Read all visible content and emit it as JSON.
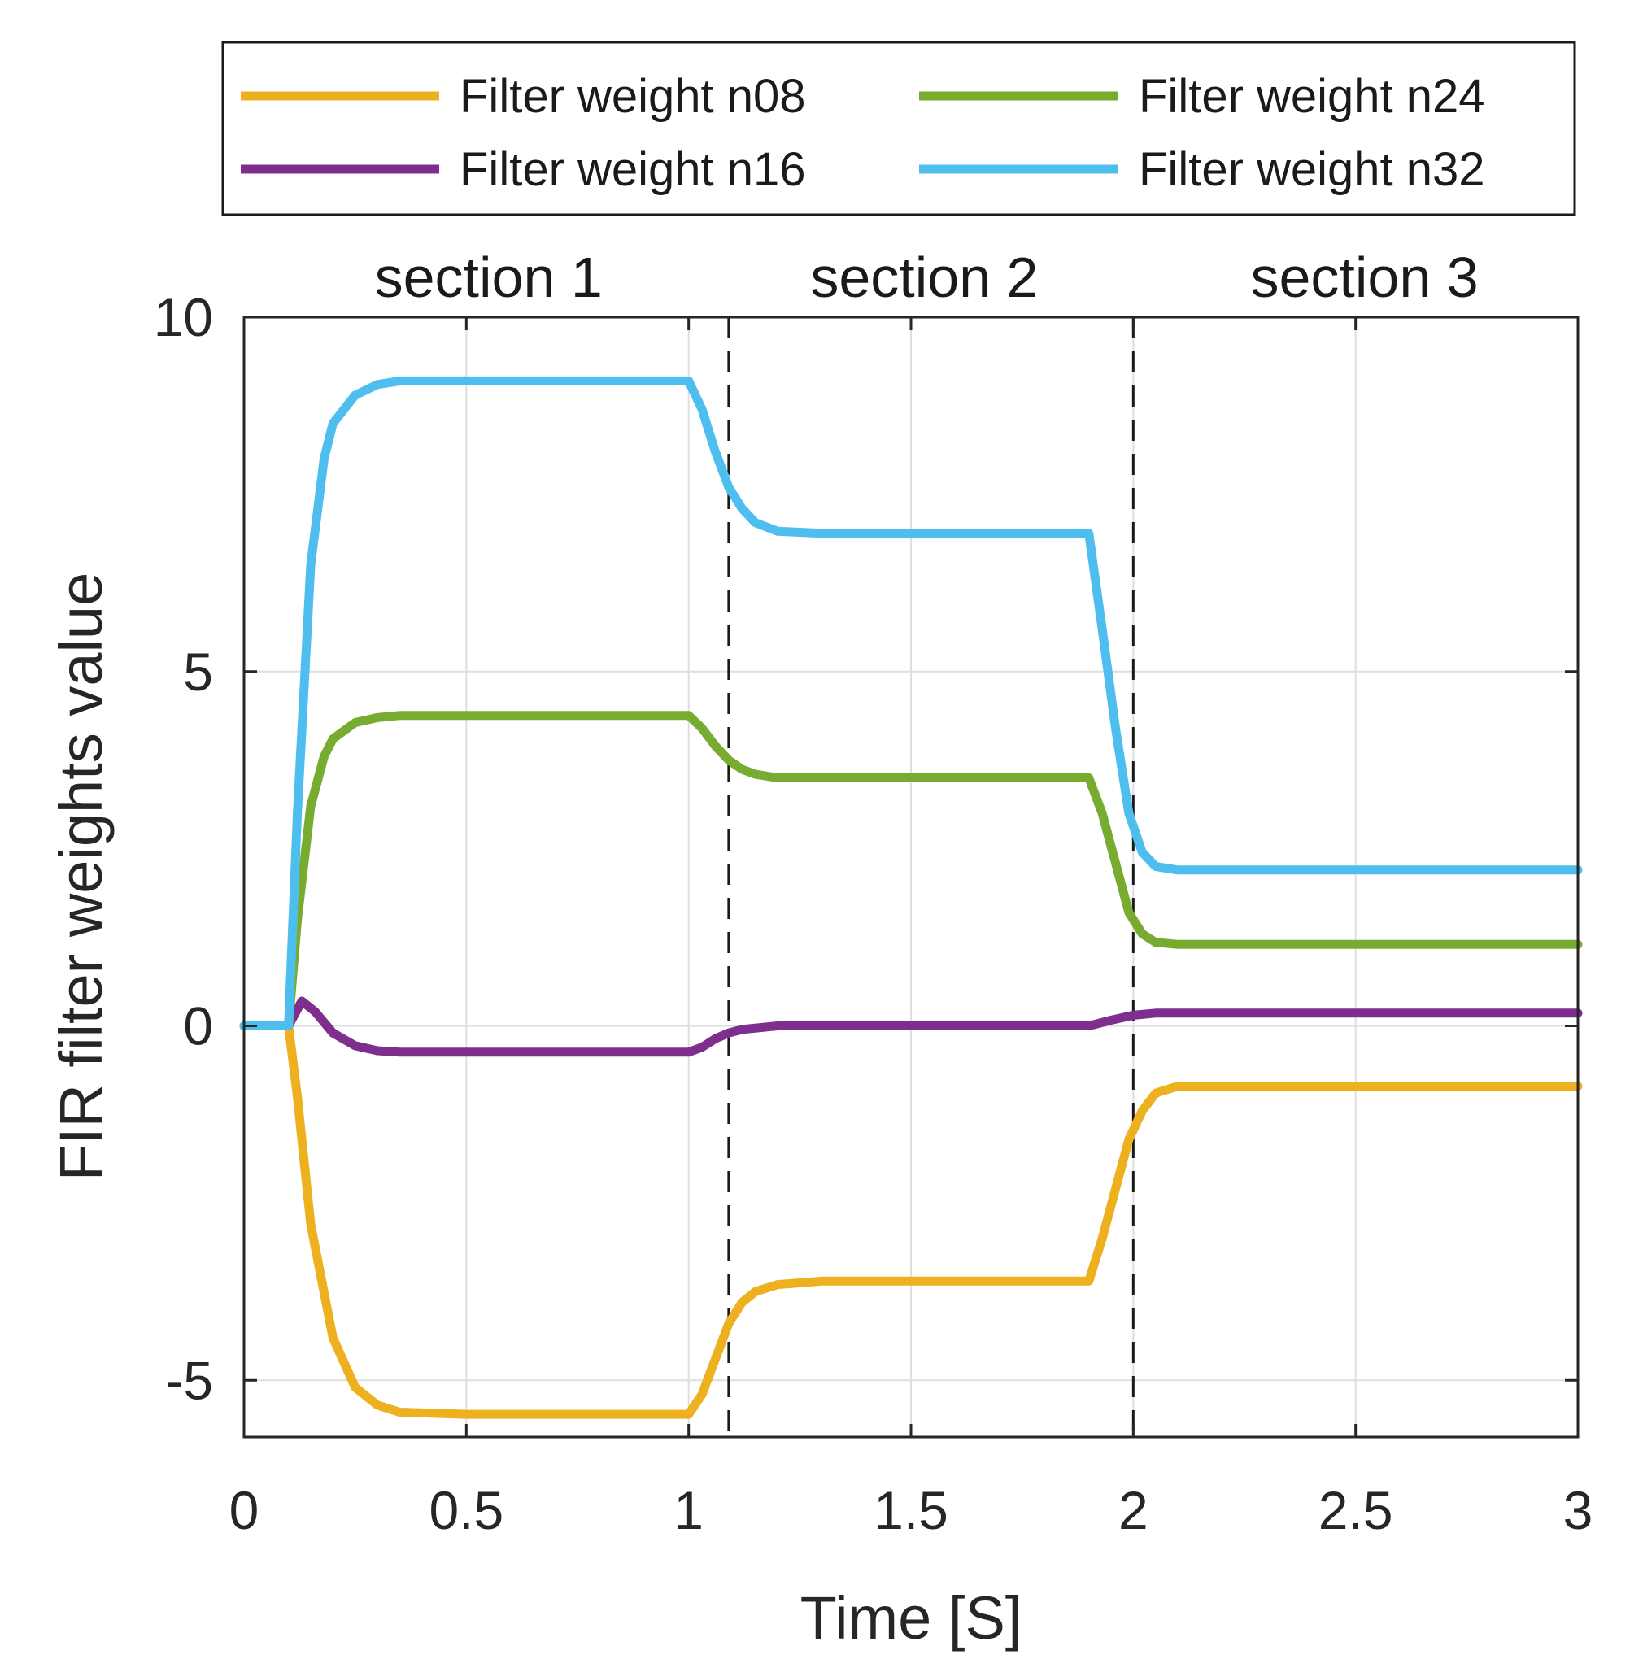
{
  "chart_data": {
    "type": "line",
    "title": "",
    "xlabel": "Time [S]",
    "ylabel": "FIR filter weights value",
    "xlim": [
      0,
      3
    ],
    "ylim": [
      -5.8,
      10
    ],
    "xticks": [
      0,
      0.5,
      1,
      1.5,
      2,
      2.5,
      3
    ],
    "xtick_labels": [
      "0",
      "0.5",
      "1",
      "1.5",
      "2",
      "2.5",
      "3"
    ],
    "yticks": [
      -5,
      0,
      5,
      10
    ],
    "ytick_labels": [
      "-5",
      "0",
      "5",
      "10"
    ],
    "grid": true,
    "legend_position": "above",
    "section_dividers": [
      1.09,
      2.0
    ],
    "sections": [
      {
        "label": "section 1",
        "x": 0.55
      },
      {
        "label": "section 2",
        "x": 1.53
      },
      {
        "label": "section 3",
        "x": 2.52
      }
    ],
    "series": [
      {
        "name": "Filter weight n08",
        "color": "#edb120",
        "x": [
          0,
          0.1,
          0.12,
          0.15,
          0.2,
          0.25,
          0.3,
          0.35,
          0.5,
          0.75,
          1.0,
          1.03,
          1.06,
          1.09,
          1.12,
          1.15,
          1.2,
          1.3,
          1.5,
          1.7,
          1.9,
          1.93,
          1.96,
          1.99,
          2.02,
          2.05,
          2.1,
          2.3,
          2.5,
          2.75,
          3.0
        ],
        "values": [
          0,
          0,
          -1.0,
          -2.8,
          -4.4,
          -5.1,
          -5.35,
          -5.45,
          -5.48,
          -5.48,
          -5.48,
          -5.2,
          -4.7,
          -4.2,
          -3.9,
          -3.75,
          -3.65,
          -3.6,
          -3.6,
          -3.6,
          -3.6,
          -3.0,
          -2.3,
          -1.6,
          -1.2,
          -0.95,
          -0.85,
          -0.85,
          -0.85,
          -0.85,
          -0.85
        ]
      },
      {
        "name": "Filter weight n16",
        "color": "#7e2f8e",
        "x": [
          0,
          0.1,
          0.13,
          0.16,
          0.2,
          0.25,
          0.3,
          0.35,
          0.5,
          0.75,
          1.0,
          1.03,
          1.06,
          1.09,
          1.12,
          1.2,
          1.5,
          1.9,
          1.95,
          2.0,
          2.05,
          2.3,
          2.5,
          3.0
        ],
        "values": [
          0,
          0,
          0.35,
          0.2,
          -0.1,
          -0.28,
          -0.35,
          -0.37,
          -0.37,
          -0.37,
          -0.37,
          -0.3,
          -0.18,
          -0.1,
          -0.05,
          0,
          0,
          0,
          0.08,
          0.15,
          0.18,
          0.18,
          0.18,
          0.18
        ]
      },
      {
        "name": "Filter weight n24",
        "color": "#77ac30",
        "x": [
          0,
          0.1,
          0.12,
          0.15,
          0.18,
          0.2,
          0.25,
          0.3,
          0.35,
          0.5,
          0.75,
          1.0,
          1.03,
          1.06,
          1.09,
          1.12,
          1.15,
          1.2,
          1.5,
          1.9,
          1.93,
          1.96,
          1.99,
          2.02,
          2.05,
          2.1,
          2.3,
          2.5,
          3.0
        ],
        "values": [
          0,
          0,
          1.5,
          3.1,
          3.8,
          4.05,
          4.28,
          4.35,
          4.38,
          4.38,
          4.38,
          4.38,
          4.2,
          3.95,
          3.75,
          3.62,
          3.55,
          3.5,
          3.5,
          3.5,
          3.0,
          2.3,
          1.6,
          1.3,
          1.18,
          1.15,
          1.15,
          1.15,
          1.15
        ]
      },
      {
        "name": "Filter weight n32",
        "color": "#4dbeee",
        "x": [
          0,
          0.1,
          0.12,
          0.15,
          0.18,
          0.2,
          0.25,
          0.3,
          0.35,
          0.5,
          0.75,
          1.0,
          1.03,
          1.06,
          1.09,
          1.12,
          1.15,
          1.2,
          1.3,
          1.5,
          1.9,
          1.93,
          1.96,
          1.99,
          2.02,
          2.05,
          2.1,
          2.3,
          2.5,
          3.0
        ],
        "values": [
          0,
          0,
          3.0,
          6.5,
          8.0,
          8.5,
          8.9,
          9.05,
          9.1,
          9.1,
          9.1,
          9.1,
          8.7,
          8.1,
          7.6,
          7.3,
          7.1,
          6.98,
          6.95,
          6.95,
          6.95,
          5.6,
          4.2,
          3.0,
          2.45,
          2.25,
          2.2,
          2.2,
          2.2,
          2.2
        ]
      }
    ]
  }
}
